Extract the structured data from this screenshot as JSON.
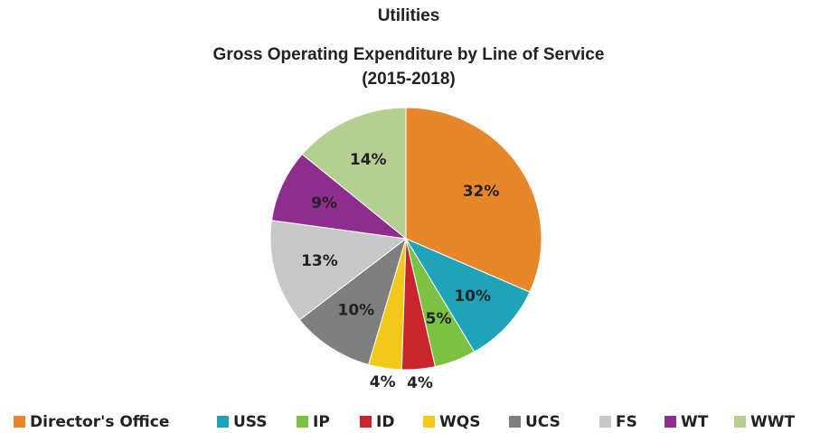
{
  "chart_data": {
    "type": "pie",
    "title": "Utilities",
    "subtitle": [
      "Gross Operating Expenditure by Line of Service",
      "(2015-2018)"
    ],
    "categories": [
      "Director's Office",
      "USS",
      "IP",
      "ID",
      "WQS",
      "UCS",
      "FS",
      "WT",
      "WWT"
    ],
    "values": [
      32,
      10,
      5,
      4,
      4,
      10,
      13,
      9,
      14
    ],
    "value_labels": [
      "32%",
      "10%",
      "5%",
      "4%",
      "4%",
      "10%",
      "13%",
      "9%",
      "14%"
    ],
    "colors": [
      "#e8872a",
      "#1ea3b8",
      "#7cc242",
      "#c9252d",
      "#f2c81a",
      "#7f7f7f",
      "#c8c8c8",
      "#8e2d8e",
      "#b5cf93"
    ],
    "legend": "bottom"
  }
}
